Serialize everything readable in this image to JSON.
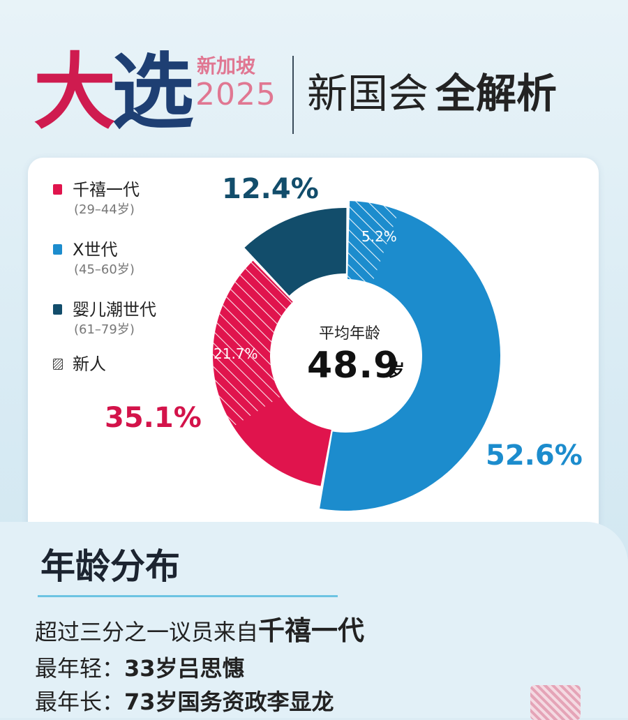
{
  "header": {
    "logo_part1": "大",
    "logo_part2": "选",
    "logo_sub": "新加坡",
    "logo_year": "2025",
    "title_regular": "新国会",
    "title_bold": "全解析"
  },
  "legend": [
    {
      "label": "千禧一代",
      "range": "(29–44岁)",
      "color": "#e0144d"
    },
    {
      "label": "X世代",
      "range": "(45–60岁)",
      "color": "#1c8ccd"
    },
    {
      "label": "婴儿潮世代",
      "range": "(61–79岁)",
      "color": "#124d6b"
    },
    {
      "label": "新人",
      "range": "",
      "color": "hatched"
    }
  ],
  "chart_data": {
    "type": "pie",
    "style": "donut",
    "center_label": "平均年龄",
    "center_value": "48.9",
    "center_unit": "岁",
    "slices": [
      {
        "name": "千禧一代",
        "value": 35.1,
        "label": "35.1%",
        "new_share": 21.7,
        "new_label": "21.7%",
        "color": "#e0144d"
      },
      {
        "name": "X世代",
        "value": 52.6,
        "label": "52.6%",
        "new_share": 5.2,
        "new_label": "5.2%",
        "color": "#1c8ccd"
      },
      {
        "name": "婴儿潮世代",
        "value": 12.4,
        "label": "12.4%",
        "new_share": 0,
        "color": "#124d6b"
      }
    ]
  },
  "section": {
    "title": "年龄分布",
    "line1_prefix": "超过三分之一议员来自",
    "line1_highlight": "千禧一代",
    "line2_label": "最年轻：",
    "line2_value": "33岁吕思憓",
    "line3_label": "最年长：",
    "line3_value": "73岁国务资政李显龙"
  }
}
